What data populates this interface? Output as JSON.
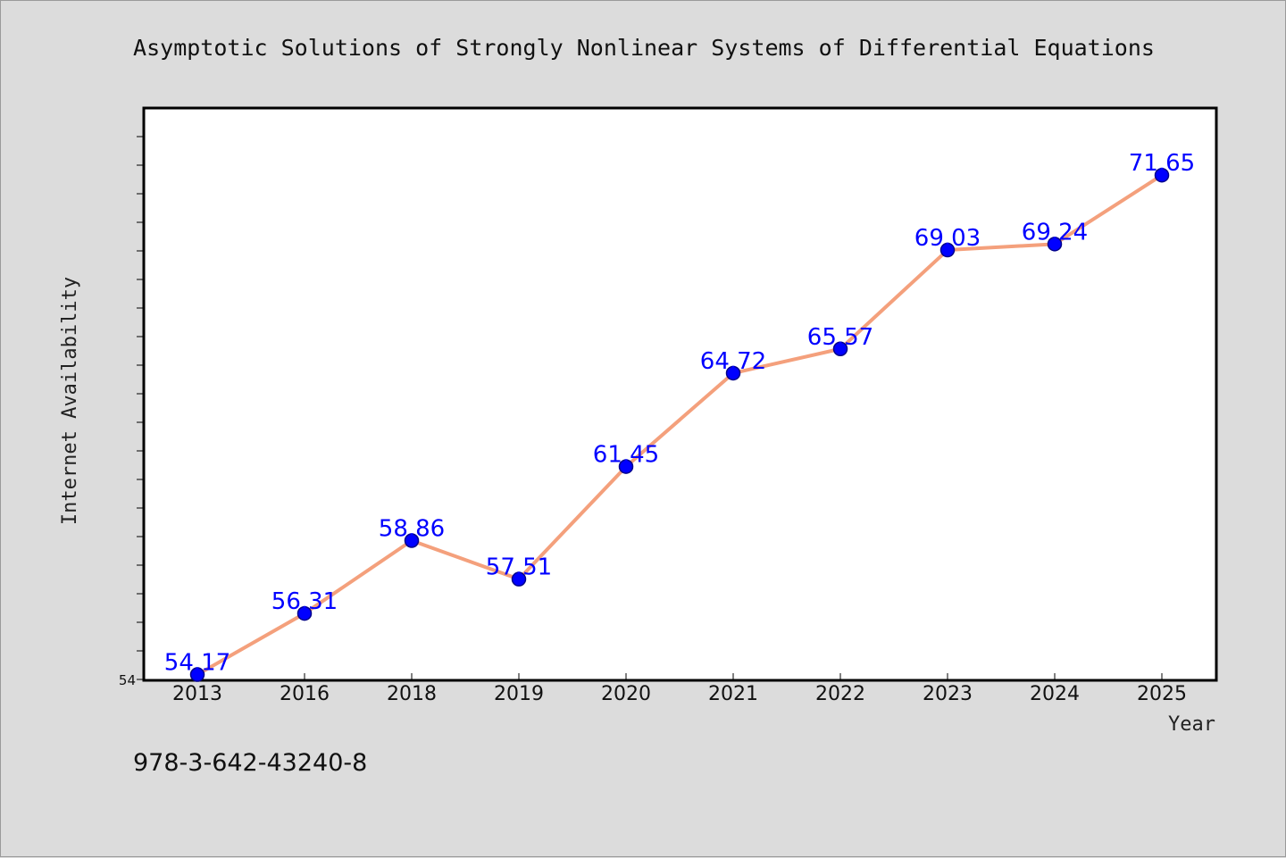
{
  "chart_data": {
    "type": "line",
    "title": "Asymptotic Solutions of Strongly Nonlinear Systems of Differential Equations",
    "xlabel": "Year",
    "ylabel": "Internet Availability",
    "categories": [
      "2013",
      "2016",
      "2018",
      "2019",
      "2020",
      "2021",
      "2022",
      "2023",
      "2024",
      "2025"
    ],
    "series": [
      {
        "values": [
          54.17,
          56.31,
          58.86,
          57.51,
          61.45,
          64.72,
          65.57,
          69.03,
          69.24,
          71.65
        ],
        "labels": [
          "54.17",
          "56.31",
          "58.86",
          "57.51",
          "61.45",
          "64.72",
          "65.57",
          "69.03",
          "69.24",
          "71.65"
        ]
      }
    ],
    "ylim": [
      54,
      74
    ],
    "yticks": [
      54
    ],
    "yticks_labeled": [
      "54"
    ],
    "grid": false,
    "legend": "none",
    "colors": {
      "line": "#f4a07c",
      "marker": "#0000ff",
      "marker_edge": "#00008b",
      "data_label": "#0000ff",
      "plot_bg": "#ffffff",
      "page_bg": "#dcdcdc"
    }
  },
  "footer": {
    "isbn": "978-3-642-43240-8"
  }
}
